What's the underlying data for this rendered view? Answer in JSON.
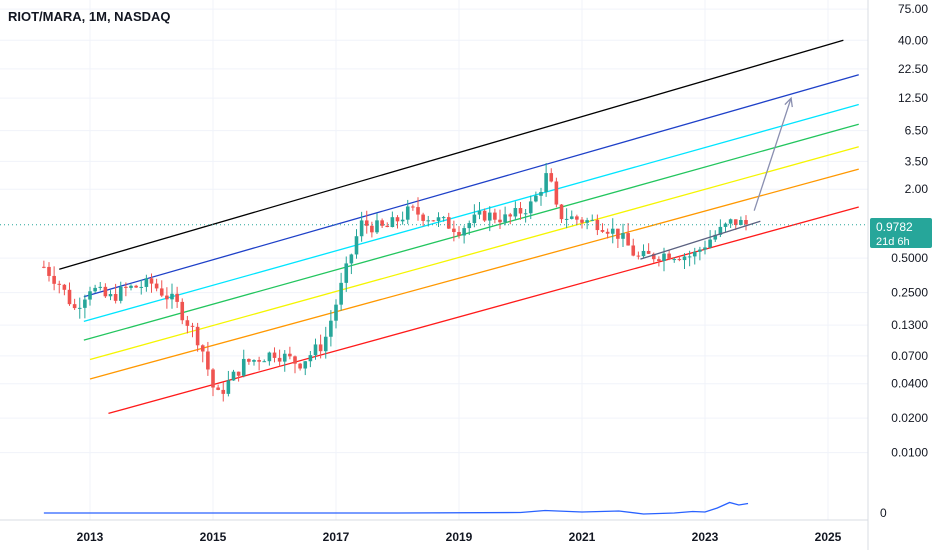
{
  "header": {
    "symbol_title": "RIOT/MARA, 1M, NASDAQ"
  },
  "price_axis": {
    "labels": [
      "75.00",
      "40.00",
      "22.50",
      "12.50",
      "6.50",
      "3.50",
      "2.00",
      "0.5000",
      "0.2500",
      "0.1300",
      "0.0700",
      "0.0400",
      "0.0200",
      "0.0100"
    ],
    "indicator_zero_label": "0"
  },
  "time_axis": {
    "labels": [
      "2013",
      "2015",
      "2017",
      "2019",
      "2021",
      "2023",
      "2025"
    ]
  },
  "last_price": {
    "value": "0.9782",
    "countdown": "21d 6h",
    "color": "#26a69a"
  },
  "colors": {
    "up": "#26a69a",
    "down": "#ef5350",
    "channel_top": "#000000",
    "channel_blue": "#1e40c8",
    "channel_cyan": "#00e5ff",
    "channel_green": "#22c55e",
    "channel_yellow": "#f5f500",
    "channel_orange": "#ff9800",
    "channel_bottom": "#ff1a1a",
    "indicator_line": "#2962ff",
    "projection": "#8a8fb0"
  },
  "chart_data": {
    "type": "candlestick",
    "scale": "log",
    "interval": "1M",
    "ylim": [
      0.006,
      90
    ],
    "xlim": [
      2012.1,
      2025.5
    ],
    "price_series": [
      {
        "date": 2012.25,
        "close": 0.42
      },
      {
        "date": 2012.5,
        "close": 0.3
      },
      {
        "date": 2012.75,
        "close": 0.18
      },
      {
        "date": 2013.0,
        "close": 0.28
      },
      {
        "date": 2013.3,
        "close": 0.22
      },
      {
        "date": 2013.6,
        "close": 0.27
      },
      {
        "date": 2014.0,
        "close": 0.3
      },
      {
        "date": 2014.4,
        "close": 0.2
      },
      {
        "date": 2014.8,
        "close": 0.09
      },
      {
        "date": 2015.05,
        "close": 0.03
      },
      {
        "date": 2015.5,
        "close": 0.06
      },
      {
        "date": 2016.0,
        "close": 0.075
      },
      {
        "date": 2016.4,
        "close": 0.06
      },
      {
        "date": 2016.8,
        "close": 0.09
      },
      {
        "date": 2017.1,
        "close": 0.3
      },
      {
        "date": 2017.4,
        "close": 1.0
      },
      {
        "date": 2017.8,
        "close": 0.9
      },
      {
        "date": 2018.2,
        "close": 1.3
      },
      {
        "date": 2018.6,
        "close": 1.1
      },
      {
        "date": 2019.0,
        "close": 0.9
      },
      {
        "date": 2019.4,
        "close": 1.2
      },
      {
        "date": 2019.8,
        "close": 1.1
      },
      {
        "date": 2020.2,
        "close": 1.5
      },
      {
        "date": 2020.45,
        "close": 2.8
      },
      {
        "date": 2020.6,
        "close": 1.2
      },
      {
        "date": 2020.9,
        "close": 1.1
      },
      {
        "date": 2021.3,
        "close": 1.0
      },
      {
        "date": 2021.6,
        "close": 0.8
      },
      {
        "date": 2021.9,
        "close": 0.5
      },
      {
        "date": 2022.4,
        "close": 0.55
      },
      {
        "date": 2022.8,
        "close": 0.52
      },
      {
        "date": 2023.1,
        "close": 0.75
      },
      {
        "date": 2023.45,
        "close": 1.05
      },
      {
        "date": 2023.7,
        "close": 0.9782
      }
    ],
    "channel_lines": [
      {
        "colorKey": "channel_top",
        "from": {
          "date": 2012.5,
          "price": 0.4
        },
        "to": {
          "date": 2025.25,
          "price": 40.0
        }
      },
      {
        "colorKey": "channel_blue",
        "from": {
          "date": 2012.9,
          "price": 0.23
        },
        "to": {
          "date": 2025.5,
          "price": 20.0
        }
      },
      {
        "colorKey": "channel_cyan",
        "from": {
          "date": 2012.9,
          "price": 0.14
        },
        "to": {
          "date": 2025.5,
          "price": 11.0
        }
      },
      {
        "colorKey": "channel_green",
        "from": {
          "date": 2012.9,
          "price": 0.096
        },
        "to": {
          "date": 2025.5,
          "price": 7.4
        }
      },
      {
        "colorKey": "channel_yellow",
        "from": {
          "date": 2013.0,
          "price": 0.065
        },
        "to": {
          "date": 2025.5,
          "price": 4.7
        }
      },
      {
        "colorKey": "channel_orange",
        "from": {
          "date": 2013.0,
          "price": 0.044
        },
        "to": {
          "date": 2025.5,
          "price": 3.0
        }
      },
      {
        "colorKey": "channel_bottom",
        "from": {
          "date": 2013.3,
          "price": 0.022
        },
        "to": {
          "date": 2025.5,
          "price": 1.4
        }
      }
    ],
    "trend_line": {
      "from": {
        "date": 2021.95,
        "price": 0.49
      },
      "to": {
        "date": 2023.9,
        "price": 1.05
      }
    },
    "projection_arrow": {
      "from": {
        "date": 2023.8,
        "price": 1.3
      },
      "to": {
        "date": 2024.4,
        "price": 12.5
      }
    },
    "indicator": {
      "ylim": [
        -1,
        5
      ],
      "series": [
        {
          "date": 2012.25,
          "value": 0.0
        },
        {
          "date": 2018.0,
          "value": 0.0
        },
        {
          "date": 2020.0,
          "value": 0.1
        },
        {
          "date": 2020.4,
          "value": 0.5
        },
        {
          "date": 2021.0,
          "value": 0.2
        },
        {
          "date": 2021.6,
          "value": 0.4
        },
        {
          "date": 2022.0,
          "value": -0.2
        },
        {
          "date": 2022.5,
          "value": 0.0
        },
        {
          "date": 2022.8,
          "value": 0.3
        },
        {
          "date": 2023.0,
          "value": 0.2
        },
        {
          "date": 2023.2,
          "value": 1.0
        },
        {
          "date": 2023.4,
          "value": 2.1
        },
        {
          "date": 2023.55,
          "value": 1.6
        },
        {
          "date": 2023.7,
          "value": 1.9
        }
      ]
    }
  }
}
